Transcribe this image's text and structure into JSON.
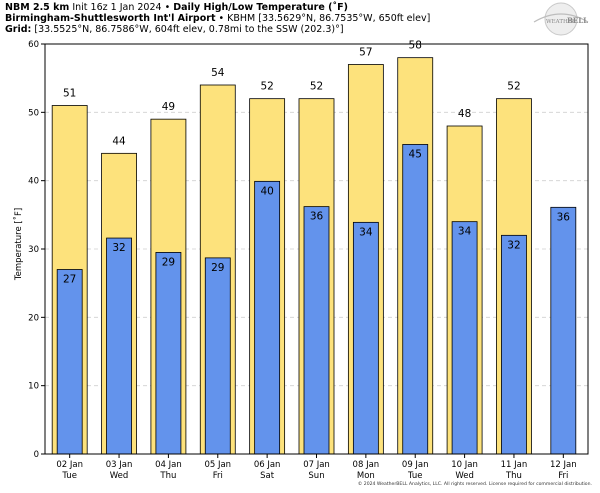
{
  "header": {
    "line1_model": "NBM 2.5 km",
    "line1_init": "Init 16z 1 Jan 2024",
    "line1_title": "Daily High/Low Temperature (˚F)",
    "line2_station": "Birmingham-Shuttlesworth Int'l Airport",
    "line2_info": "KBHM [33.5629°N, 86.7535°W, 650ft elev]",
    "line3_label": "Grid:",
    "line3_info": "[33.5525°N, 86.7586°W, 604ft elev, 0.78mi to the SSW (202.3)°]"
  },
  "logo": {
    "top": "WEATHER",
    "bottom": "BELL"
  },
  "footer": "© 2024 WeatherBELL Analytics, LLC. All rights reserved. License required for commercial distribution.",
  "colors": {
    "high": "#fde27c",
    "low": "#6393ec",
    "frame": "#000000",
    "grid": "#d0d0d0"
  },
  "chart_data": {
    "type": "bar",
    "ylabel": "Temperature [˚F]",
    "ylim": [
      0,
      60
    ],
    "yticks": [
      0,
      10,
      20,
      30,
      40,
      50,
      60
    ],
    "grid": true,
    "categories": [
      "02 Jan",
      "03 Jan",
      "04 Jan",
      "05 Jan",
      "06 Jan",
      "07 Jan",
      "08 Jan",
      "09 Jan",
      "10 Jan",
      "11 Jan",
      "12 Jan"
    ],
    "weekdays": [
      "Tue",
      "Wed",
      "Thu",
      "Fri",
      "Sat",
      "Sun",
      "Mon",
      "Tue",
      "Wed",
      "Thu",
      "Fri"
    ],
    "series": [
      {
        "values": [
          51,
          44,
          49,
          54,
          52,
          52,
          57,
          58,
          48,
          52,
          null
        ],
        "labels": [
          "51",
          "44",
          "49",
          "54",
          "52",
          "52",
          "57",
          "58",
          "48",
          "52",
          ""
        ]
      },
      {
        "values": [
          27,
          31.6,
          29.5,
          28.7,
          39.9,
          36.2,
          33.9,
          45.3,
          34,
          32,
          36.1
        ],
        "labels": [
          "27",
          "32",
          "29",
          "29",
          "40",
          "36",
          "34",
          "45",
          "34",
          "32",
          "36"
        ]
      }
    ]
  }
}
